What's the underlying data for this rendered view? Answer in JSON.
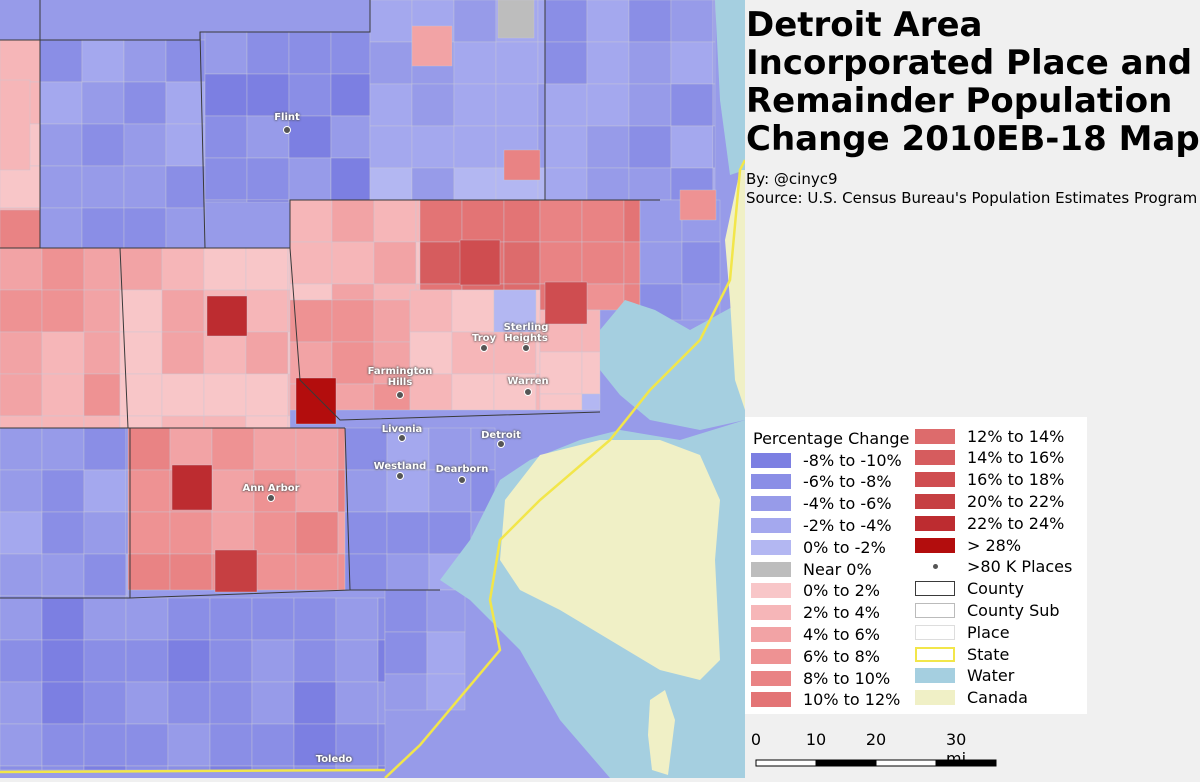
{
  "title": "Detroit Area Incorporated Place and Remainder Population Change 2010EB-18 Map",
  "byline": "By: @cinyc9",
  "source": "Source: U.S. Census Bureau's Population Estimates Program",
  "map": {
    "places": [
      {
        "name": "Flint",
        "lines": [
          "Flint"
        ]
      },
      {
        "name": "Troy",
        "lines": [
          "Troy"
        ]
      },
      {
        "name": "Sterling Heights",
        "lines": [
          "Sterling",
          "Heights"
        ]
      },
      {
        "name": "Farmington Hills",
        "lines": [
          "Farmington",
          "Hills"
        ]
      },
      {
        "name": "Warren",
        "lines": [
          "Warren"
        ]
      },
      {
        "name": "Livonia",
        "lines": [
          "Livonia"
        ]
      },
      {
        "name": "Detroit",
        "lines": [
          "Detroit"
        ]
      },
      {
        "name": "Westland",
        "lines": [
          "Westland"
        ]
      },
      {
        "name": "Dearborn",
        "lines": [
          "Dearborn"
        ]
      },
      {
        "name": "Ann Arbor",
        "lines": [
          "Ann Arbor"
        ]
      },
      {
        "name": "Toledo",
        "lines": [
          "Toledo"
        ]
      }
    ],
    "colors": {
      "water": "#a5cfe0",
      "canada": "#f0f0c6",
      "state_line": "#f2e64a",
      "county_line": "#3a3a3a",
      "neg8_10": "#7c7fe2",
      "neg6_8": "#8a8ee6",
      "neg4_6": "#979be9",
      "neg2_4": "#a4a8ee",
      "neg0_2": "#b3b7f2",
      "near0": "#bdbdbd",
      "pos0_2": "#f8c6c8",
      "pos2_4": "#f6b6b8",
      "pos4_6": "#f2a3a5",
      "pos6_8": "#ee9293",
      "pos8_10": "#e98384",
      "pos10_12": "#e37475",
      "pos12_14": "#dd6b6c",
      "pos14_16": "#d65c5e",
      "pos16_18": "#cf4d50",
      "pos20_22": "#c63f42",
      "pos22_24": "#bd2c30",
      "pos28": "#b30d0d"
    }
  },
  "legend": {
    "title": "Percentage Change",
    "items": [
      {
        "label": "-8% to -10%",
        "color": "#7c7fe2",
        "kind": "fill"
      },
      {
        "label": "-6% to -8%",
        "color": "#8a8ee6",
        "kind": "fill"
      },
      {
        "label": "-4% to -6%",
        "color": "#979be9",
        "kind": "fill"
      },
      {
        "label": "-2% to -4%",
        "color": "#a4a8ee",
        "kind": "fill"
      },
      {
        "label": "0% to -2%",
        "color": "#b3b7f2",
        "kind": "fill"
      },
      {
        "label": "Near 0%",
        "color": "#bdbdbd",
        "kind": "fill"
      },
      {
        "label": "0% to 2%",
        "color": "#f8c6c8",
        "kind": "fill"
      },
      {
        "label": "2% to 4%",
        "color": "#f6b6b8",
        "kind": "fill"
      },
      {
        "label": "4% to 6%",
        "color": "#f2a3a5",
        "kind": "fill"
      },
      {
        "label": "6% to 8%",
        "color": "#ee9293",
        "kind": "fill"
      },
      {
        "label": "8% to 10%",
        "color": "#e98384",
        "kind": "fill"
      },
      {
        "label": "10% to 12%",
        "color": "#e37475",
        "kind": "fill"
      },
      {
        "label": "12% to 14%",
        "color": "#dd6b6c",
        "kind": "fill"
      },
      {
        "label": "14% to 16%",
        "color": "#d65c5e",
        "kind": "fill"
      },
      {
        "label": "16% to 18%",
        "color": "#cf4d50",
        "kind": "fill"
      },
      {
        "label": "20% to 22%",
        "color": "#c63f42",
        "kind": "fill"
      },
      {
        "label": "22% to 24%",
        "color": "#bd2c30",
        "kind": "fill"
      },
      {
        "label": "> 28%",
        "color": "#b30d0d",
        "kind": "fill"
      },
      {
        "label": ">80 K Places",
        "color": "#555555",
        "kind": "dot"
      },
      {
        "label": "County",
        "color": "#3a3a3a",
        "kind": "outline"
      },
      {
        "label": "County Sub",
        "color": "#bbbbbb",
        "kind": "outline"
      },
      {
        "label": "Place",
        "color": "#dddddd",
        "kind": "outline"
      },
      {
        "label": "State",
        "color": "#f2e64a",
        "kind": "outline-thick"
      },
      {
        "label": "Water",
        "color": "#a5cfe0",
        "kind": "fill"
      },
      {
        "label": "Canada",
        "color": "#f0f0c6",
        "kind": "fill"
      }
    ]
  },
  "scale_bar": {
    "ticks": [
      "0",
      "10",
      "20",
      "30 mi"
    ],
    "values_mi": [
      0,
      10,
      20,
      30
    ]
  }
}
